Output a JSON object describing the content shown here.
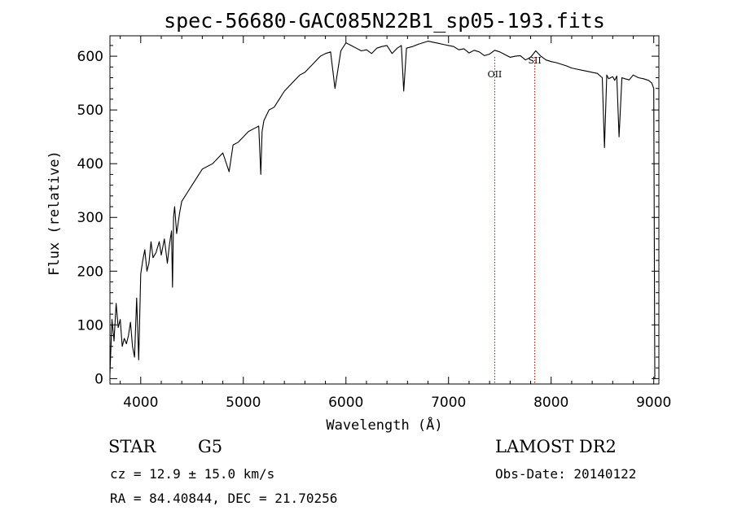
{
  "chart_data": {
    "type": "line",
    "title": "spec-56680-GAC085N22B1_sp05-193.fits",
    "xlabel": "Wavelength (Å)",
    "ylabel": "Flux (relative)",
    "xlim": [
      3700,
      9050
    ],
    "ylim": [
      -10,
      638
    ],
    "xticks": [
      4000,
      5000,
      6000,
      7000,
      8000,
      9000
    ],
    "xtick_labels": [
      "4000",
      "5000",
      "6000",
      "7000",
      "8000",
      "9000"
    ],
    "yticks": [
      0,
      100,
      200,
      300,
      400,
      500,
      600
    ],
    "ytick_labels": [
      "0",
      "100",
      "200",
      "300",
      "400",
      "500",
      "600"
    ],
    "grid": false,
    "series": [
      {
        "color": "#000000",
        "x": [
          3700,
          3720,
          3740,
          3760,
          3780,
          3800,
          3820,
          3840,
          3860,
          3880,
          3900,
          3920,
          3940,
          3960,
          3980,
          4000,
          4020,
          4040,
          4060,
          4080,
          4100,
          4120,
          4150,
          4180,
          4200,
          4230,
          4260,
          4280,
          4300,
          4310,
          4320,
          4330,
          4350,
          4380,
          4400,
          4450,
          4500,
          4550,
          4600,
          4650,
          4700,
          4750,
          4800,
          4861,
          4900,
          4950,
          5000,
          5050,
          5100,
          5150,
          5170,
          5183,
          5200,
          5250,
          5300,
          5350,
          5400,
          5450,
          5500,
          5550,
          5600,
          5650,
          5700,
          5750,
          5800,
          5850,
          5893,
          5950,
          6000,
          6050,
          6100,
          6150,
          6200,
          6250,
          6300,
          6350,
          6400,
          6450,
          6500,
          6540,
          6563,
          6590,
          6650,
          6700,
          6750,
          6800,
          6850,
          6900,
          6950,
          7000,
          7050,
          7100,
          7150,
          7200,
          7250,
          7300,
          7350,
          7400,
          7450,
          7500,
          7550,
          7600,
          7650,
          7700,
          7750,
          7800,
          7850,
          7900,
          7950,
          8000,
          8050,
          8100,
          8150,
          8200,
          8250,
          8300,
          8350,
          8400,
          8450,
          8498,
          8520,
          8542,
          8560,
          8600,
          8620,
          8640,
          8662,
          8690,
          8720,
          8760,
          8800,
          8850,
          8900,
          8950,
          8980,
          9000,
          9010
        ],
        "y": [
          10,
          110,
          70,
          140,
          95,
          110,
          60,
          75,
          65,
          80,
          105,
          60,
          40,
          150,
          35,
          195,
          220,
          240,
          200,
          215,
          255,
          225,
          235,
          255,
          230,
          260,
          215,
          250,
          275,
          170,
          300,
          320,
          270,
          310,
          330,
          345,
          360,
          375,
          390,
          395,
          400,
          410,
          420,
          385,
          435,
          440,
          450,
          460,
          465,
          470,
          380,
          460,
          480,
          500,
          505,
          520,
          535,
          545,
          555,
          565,
          570,
          580,
          590,
          600,
          605,
          608,
          540,
          610,
          625,
          620,
          615,
          610,
          612,
          605,
          615,
          618,
          620,
          605,
          615,
          620,
          535,
          615,
          618,
          622,
          625,
          628,
          626,
          624,
          622,
          620,
          618,
          612,
          614,
          606,
          611,
          608,
          601,
          604,
          611,
          608,
          603,
          598,
          600,
          601,
          593,
          598,
          610,
          600,
          593,
          590,
          588,
          585,
          582,
          578,
          576,
          574,
          572,
          570,
          568,
          560,
          430,
          565,
          558,
          562,
          555,
          563,
          450,
          560,
          558,
          556,
          565,
          560,
          558,
          555,
          550,
          540,
          0
        ]
      }
    ],
    "annotations": [
      {
        "label": "OII",
        "x": 7450
      },
      {
        "label": "SII",
        "x": 7840
      }
    ]
  },
  "info": {
    "object_type": "STAR",
    "subclass": "G5",
    "survey": "LAMOST DR2",
    "redshift": "cz = 12.9 ± 15.0 km/s",
    "obs_date": "Obs-Date: 20140122",
    "coords": "RA =  84.40844, DEC =  21.70256"
  },
  "colors": {
    "spectrum": "#000000",
    "line_marker": "#cc0000",
    "frame": "#000000"
  }
}
